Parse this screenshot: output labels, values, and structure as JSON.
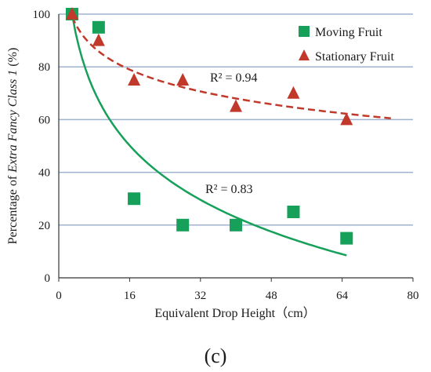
{
  "chart_data": {
    "type": "scatter",
    "xlabel": "Equivalent Drop Height（cm）",
    "ylabel_parts": [
      "Percentage of ",
      "Extra Fancy Class 1",
      " (%)"
    ],
    "xlim": [
      0,
      80
    ],
    "ylim": [
      0,
      100
    ],
    "xticks": [
      0,
      16,
      32,
      48,
      64,
      80
    ],
    "yticks": [
      0,
      20,
      40,
      60,
      80,
      100
    ],
    "grid": "horizontal",
    "legend_position": "top-right",
    "series": [
      {
        "name": "Moving Fruit",
        "marker": "square",
        "color": "#16a05a",
        "x": [
          3,
          9,
          17,
          28,
          40,
          53,
          65
        ],
        "y": [
          100,
          95,
          30,
          20,
          20,
          25,
          15
        ],
        "trendline": {
          "style": "solid",
          "x_start": 3,
          "x_end": 65,
          "y_start": 100,
          "y_end": 8.5,
          "r2_label": "R² = 0.83"
        }
      },
      {
        "name": "Stationary Fruit",
        "marker": "triangle",
        "color": "#c0392b",
        "x": [
          3,
          9,
          17,
          28,
          40,
          53,
          65
        ],
        "y": [
          100,
          90,
          75,
          75,
          65,
          70,
          60
        ],
        "trendline": {
          "style": "dashed",
          "x_start": 3,
          "x_end": 75,
          "y_start": 99,
          "y_end": 60.5,
          "r2_label": "R² = 0.94"
        }
      }
    ],
    "panel_label": "(c)"
  }
}
